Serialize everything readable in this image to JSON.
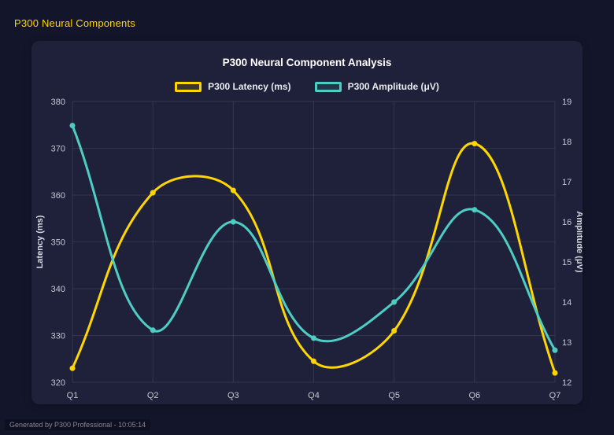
{
  "page": {
    "header": "P300 Neural Components",
    "footer": "Generated by P300 Professional - 10:05:14"
  },
  "chart_data": {
    "type": "line",
    "title": "P300 Neural Component Analysis",
    "categories": [
      "Q1",
      "Q2",
      "Q3",
      "Q4",
      "Q5",
      "Q6",
      "Q7"
    ],
    "series": [
      {
        "name": "P300 Latency (ms)",
        "color": "#ffd700",
        "axis": "left",
        "values": [
          323,
          360.5,
          361,
          324.5,
          331,
          371,
          322
        ]
      },
      {
        "name": "P300 Amplitude (μV)",
        "color": "#4ecdc4",
        "axis": "right",
        "values": [
          18.4,
          13.3,
          16.0,
          13.1,
          14.0,
          16.3,
          12.8
        ]
      }
    ],
    "left_axis": {
      "label": "Latency (ms)",
      "min": 320,
      "max": 380,
      "step": 10
    },
    "right_axis": {
      "label": "Amplitude (μV)",
      "min": 12,
      "max": 19,
      "step": 1
    },
    "grid": true,
    "legend_position": "top",
    "line_style": "smooth-spline"
  },
  "colors": {
    "page_background": "#13152b",
    "panel_background": "#1e2139",
    "accent_yellow": "#ffd700",
    "accent_teal": "#4ecdc4",
    "grid": "rgba(255,255,255,0.09)"
  }
}
